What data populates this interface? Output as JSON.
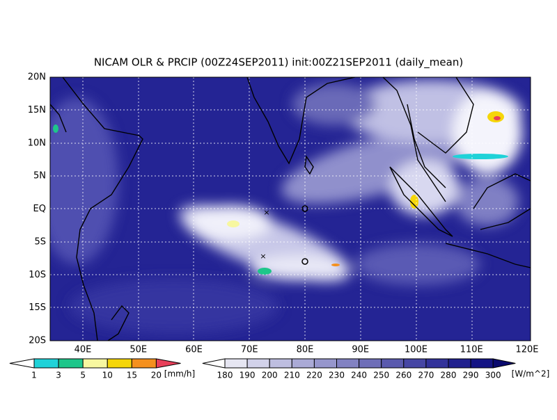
{
  "title": "NICAM OLR & PRCIP (00Z24SEP2011) init:00Z21SEP2011 (daily_mean)",
  "lat_labels": [
    "20N",
    "15N",
    "10N",
    "5N",
    "EQ",
    "5S",
    "10S",
    "15S",
    "20S"
  ],
  "lon_labels": [
    "40E",
    "50E",
    "60E",
    "70E",
    "80E",
    "90E",
    "100E",
    "110E",
    "120E"
  ],
  "precip_legend": {
    "labels": [
      1,
      3,
      5,
      10,
      15,
      20
    ],
    "unit": "[mm/h]",
    "colors": [
      "#ffffff",
      "#1fd2d8",
      "#1ec68a",
      "#f7f7a0",
      "#f5d60a",
      "#f4901e",
      "#e8405a"
    ]
  },
  "olr_legend": {
    "labels": [
      180,
      190,
      200,
      210,
      220,
      230,
      240,
      250,
      260,
      270,
      280,
      290,
      300
    ],
    "unit": "[W/m^2]",
    "colors": [
      "#ffffff",
      "#e6e6f2",
      "#d2d2ea",
      "#bebee0",
      "#aaaad6",
      "#9696cc",
      "#8282c2",
      "#6e6eb8",
      "#5a5aae",
      "#4646a4",
      "#32329a",
      "#20208e",
      "#141484",
      "#0a0a6e"
    ]
  }
}
